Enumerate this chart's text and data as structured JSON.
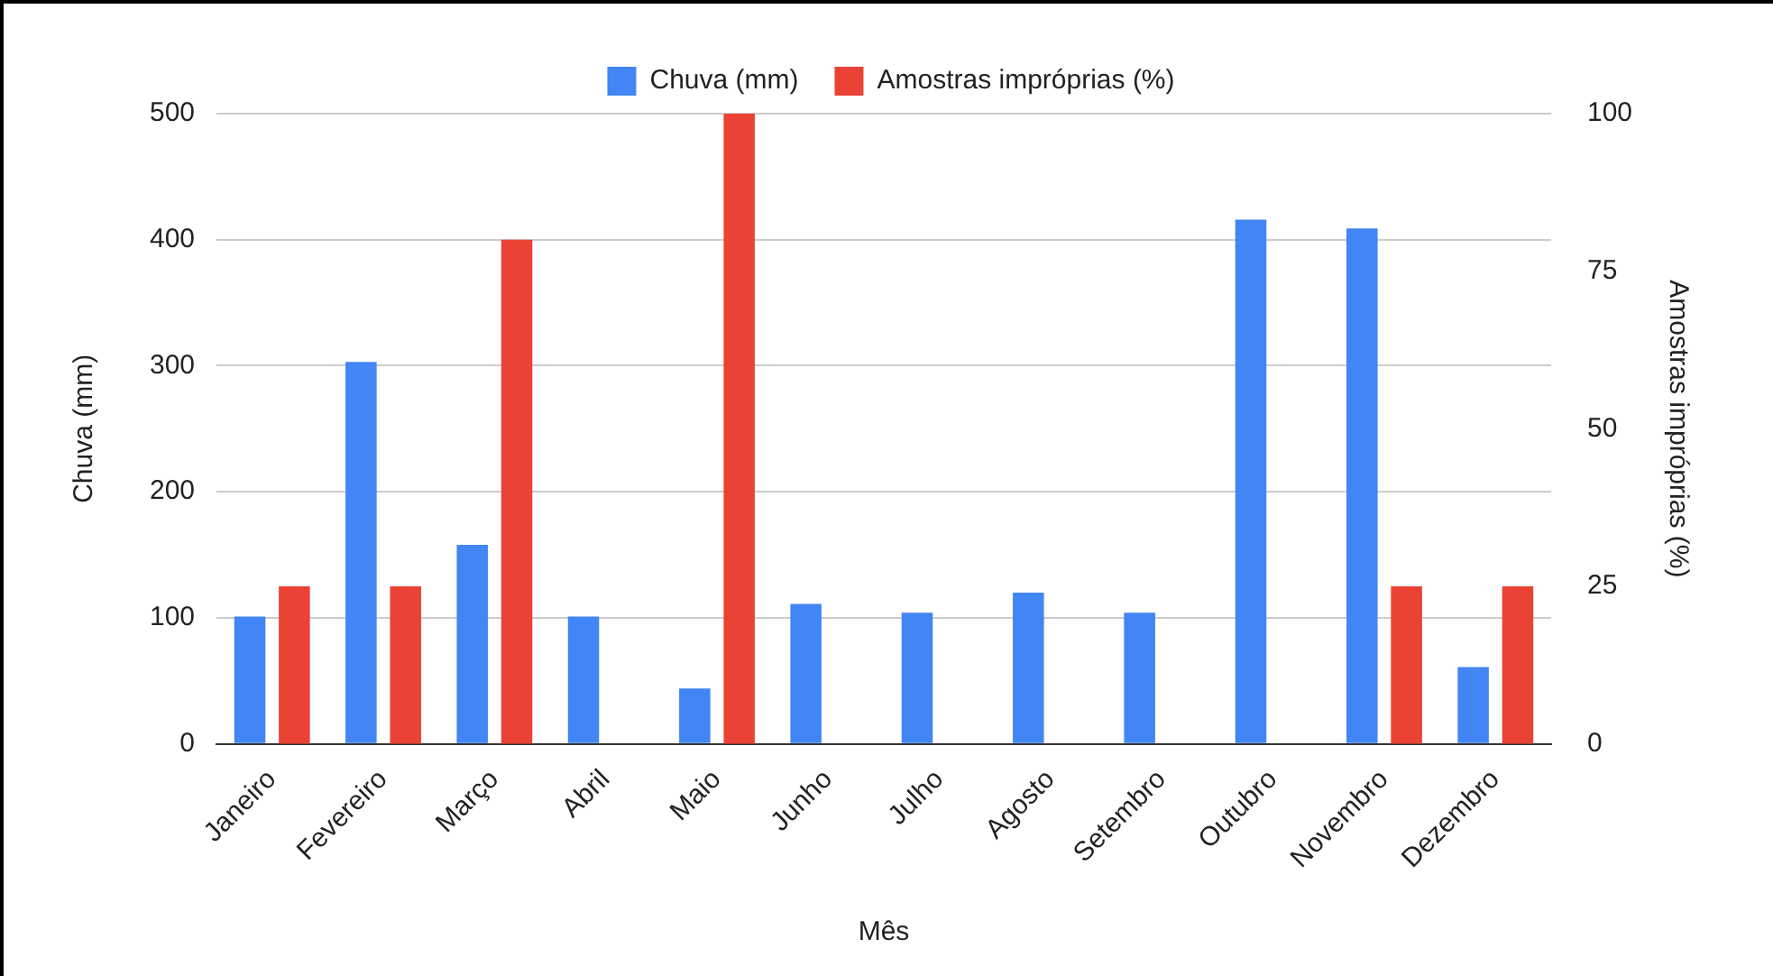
{
  "chart_data": {
    "type": "bar",
    "xlabel": "Mês",
    "ylabel": "Chuva (mm)",
    "y2label": "Amostras impróprias (%)",
    "categories": [
      "Janeiro",
      "Fevereiro",
      "Março",
      "Abril",
      "Maio",
      "Junho",
      "Julho",
      "Agosto",
      "Setembro",
      "Outubro",
      "Novembro",
      "Dezembro"
    ],
    "series": [
      {
        "name": "Chuva (mm)",
        "color": "#4285f4",
        "values": [
          101,
          303,
          158,
          101,
          44,
          111,
          104,
          120,
          104,
          416,
          409,
          61
        ]
      },
      {
        "name": "Amostras impróprias (%)",
        "color": "#ea4335",
        "axis": "y2",
        "values": [
          25,
          25,
          80,
          0,
          100,
          0,
          0,
          0,
          0,
          0,
          25,
          25
        ]
      }
    ],
    "ylim": [
      0,
      500
    ],
    "yticks": [
      0,
      100,
      200,
      300,
      400,
      500
    ],
    "y2lim": [
      0,
      100
    ],
    "y2ticks": [
      0,
      25,
      50,
      75,
      100
    ],
    "grid": "y",
    "legend": "top"
  }
}
